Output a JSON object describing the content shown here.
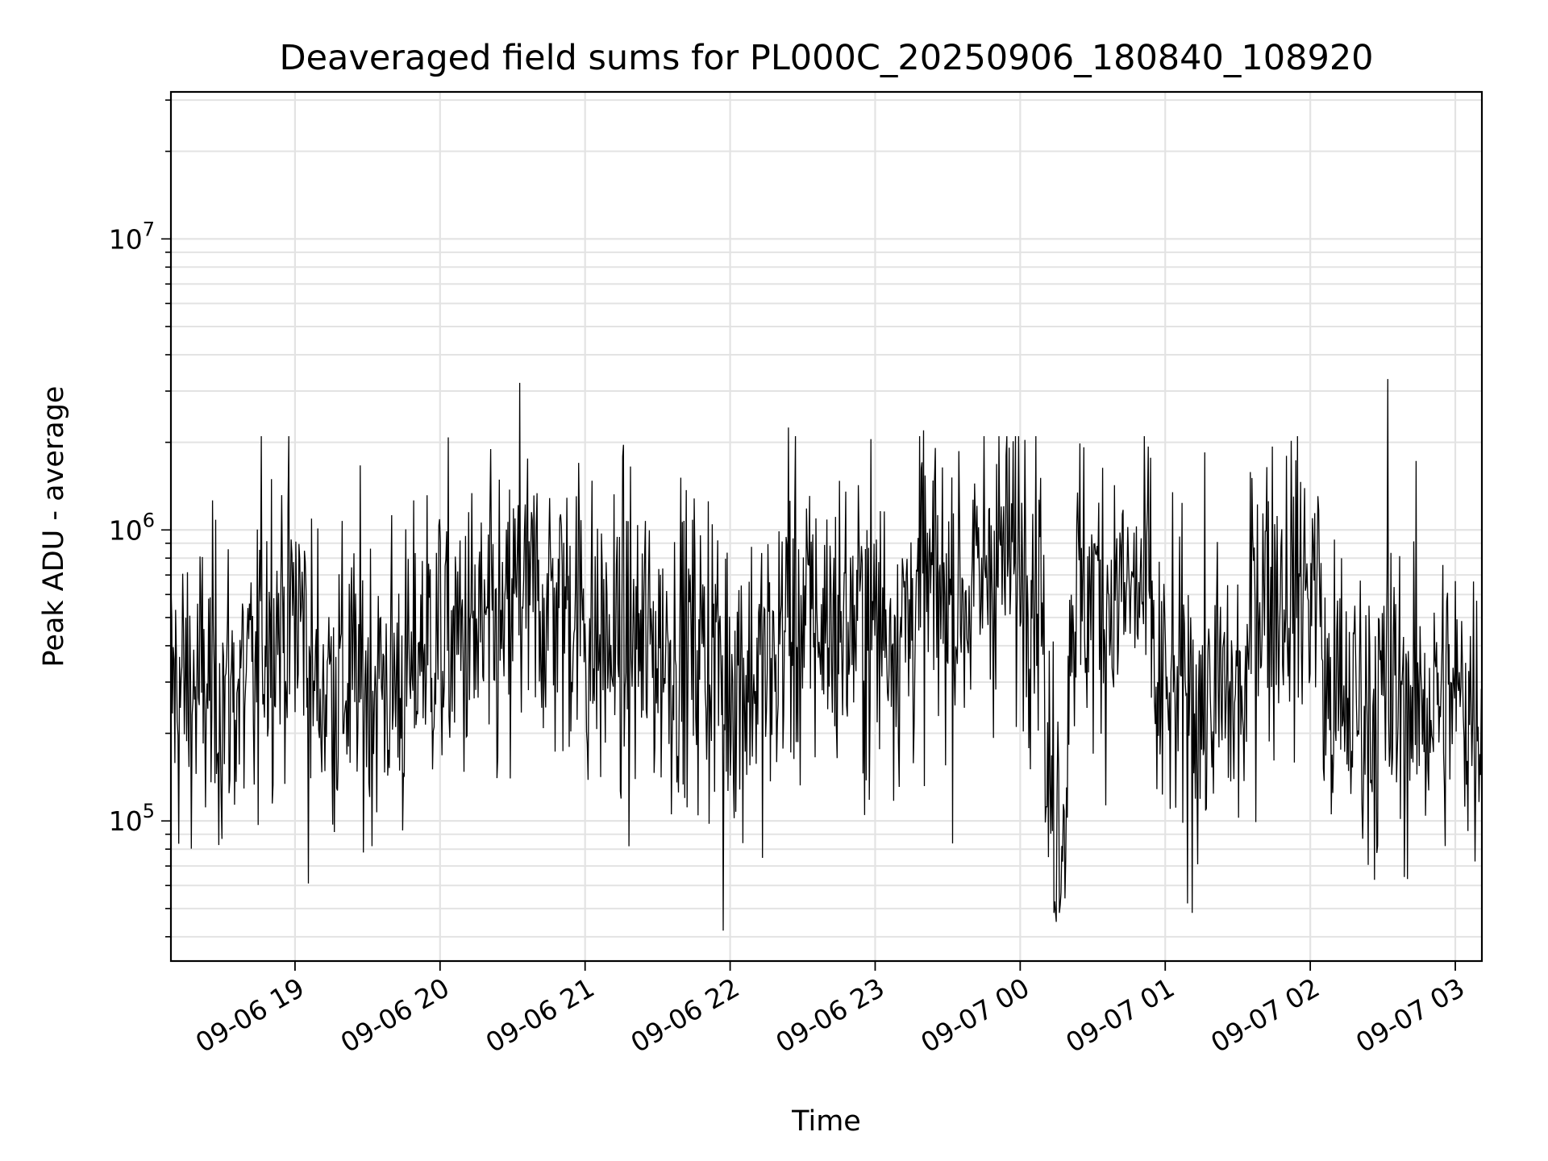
{
  "chart_data": {
    "type": "line",
    "title": "Deaveraged field sums for PL000C_20250906_180840_108920",
    "xlabel": "Time",
    "ylabel": "Peak ADU - average",
    "x_scale": "time",
    "y_scale": "log",
    "xlim": [
      "2025-09-06 18:08:40",
      "2025-09-07 03:11:00"
    ],
    "ylim": [
      33000,
      32000000
    ],
    "grid": true,
    "legend": "none",
    "line_color": "#000000",
    "x_ticks": [
      {
        "value": "2025-09-06 19:00",
        "label": "09-06 19"
      },
      {
        "value": "2025-09-06 20:00",
        "label": "09-06 20"
      },
      {
        "value": "2025-09-06 21:00",
        "label": "09-06 21"
      },
      {
        "value": "2025-09-06 22:00",
        "label": "09-06 22"
      },
      {
        "value": "2025-09-06 23:00",
        "label": "09-06 23"
      },
      {
        "value": "2025-09-07 00:00",
        "label": "09-07 00"
      },
      {
        "value": "2025-09-07 01:00",
        "label": "09-07 01"
      },
      {
        "value": "2025-09-07 02:00",
        "label": "09-07 02"
      },
      {
        "value": "2025-09-07 03:00",
        "label": "09-07 03"
      }
    ],
    "y_ticks": [
      {
        "value": 100000,
        "base": "10",
        "exp": "5"
      },
      {
        "value": 1000000,
        "base": "10",
        "exp": "6"
      },
      {
        "value": 10000000,
        "base": "10",
        "exp": "7"
      }
    ],
    "series": [
      {
        "sampling_minutes": 1.3,
        "value_range": [
          42000,
          3300000
        ],
        "segments": [
          {
            "start": "2025-09-06 18:08:40",
            "end": "2025-09-06 18:45",
            "level": 280000
          },
          {
            "start": "2025-09-06 18:45",
            "end": "2025-09-06 19:05",
            "level": 500000
          },
          {
            "start": "2025-09-06 19:05",
            "end": "2025-09-06 19:50",
            "level": 300000
          },
          {
            "start": "2025-09-06 19:50",
            "end": "2025-09-06 20:30",
            "level": 420000
          },
          {
            "start": "2025-09-06 20:30",
            "end": "2025-09-06 21:00",
            "level": 560000
          },
          {
            "start": "2025-09-06 21:00",
            "end": "2025-09-06 21:55",
            "level": 400000
          },
          {
            "start": "2025-09-06 21:55",
            "end": "2025-09-06 22:20",
            "level": 320000
          },
          {
            "start": "2025-09-06 22:20",
            "end": "2025-09-06 23:15",
            "level": 480000
          },
          {
            "start": "2025-09-06 23:15",
            "end": "2025-09-06 23:45",
            "level": 600000
          },
          {
            "start": "2025-09-06 23:45",
            "end": "2025-09-07 00:10",
            "level": 820000
          },
          {
            "start": "2025-09-07 00:10",
            "end": "2025-09-07 00:20",
            "level": 120000
          },
          {
            "start": "2025-09-07 00:20",
            "end": "2025-09-07 00:55",
            "level": 600000
          },
          {
            "start": "2025-09-07 00:55",
            "end": "2025-09-07 01:35",
            "level": 260000
          },
          {
            "start": "2025-09-07 01:35",
            "end": "2025-09-07 02:05",
            "level": 650000
          },
          {
            "start": "2025-09-07 02:05",
            "end": "2025-09-07 02:35",
            "level": 250000
          },
          {
            "start": "2025-09-07 02:35",
            "end": "2025-09-07 03:11:00",
            "level": 260000
          }
        ],
        "notable_points": [
          {
            "x": "2025-09-06 20:33",
            "y": 3200000
          },
          {
            "x": "2025-09-06 22:24",
            "y": 2250000
          },
          {
            "x": "2025-09-06 23:20",
            "y": 2200000
          },
          {
            "x": "2025-09-06 21:57",
            "y": 42000
          },
          {
            "x": "2025-09-07 00:15",
            "y": 45000
          },
          {
            "x": "2025-09-07 02:32",
            "y": 3300000
          }
        ]
      }
    ]
  }
}
